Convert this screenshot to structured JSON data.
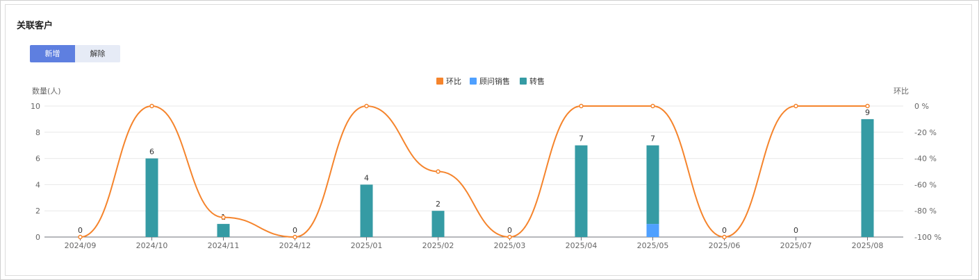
{
  "page": {
    "title": "关联客户"
  },
  "tabs": [
    {
      "label": "新增",
      "active": true
    },
    {
      "label": "解除",
      "active": false
    }
  ],
  "chart_data": {
    "type": "bar",
    "categories": [
      "2024/09",
      "2024/10",
      "2024/11",
      "2024/12",
      "2025/01",
      "2025/02",
      "2025/03",
      "2025/04",
      "2025/05",
      "2025/06",
      "2025/07",
      "2025/08"
    ],
    "series": [
      {
        "name": "顾问销售",
        "kind": "bar",
        "stack": "total",
        "color": "#4fa0ff",
        "values": [
          0,
          0,
          0,
          0,
          0,
          0,
          0,
          0,
          1,
          0,
          0,
          0
        ]
      },
      {
        "name": "转售",
        "kind": "bar",
        "stack": "total",
        "color": "#359ba4",
        "values": [
          0,
          6,
          1,
          0,
          4,
          2,
          0,
          7,
          6,
          0,
          0,
          9
        ]
      },
      {
        "name": "环比",
        "kind": "line",
        "axis": "right",
        "smooth": true,
        "color": "#f5842c",
        "values": [
          -100,
          0,
          -85,
          -100,
          0,
          -50,
          -100,
          0,
          0,
          -100,
          0,
          0
        ]
      }
    ],
    "totals": [
      0,
      6,
      1,
      0,
      4,
      2,
      0,
      7,
      7,
      0,
      0,
      9
    ],
    "legend": [
      "环比",
      "顾问销售",
      "转售"
    ],
    "legend_position": "top-center",
    "ylabel_left": "数量(人)",
    "ylabel_right": "环比",
    "ylim_left": [
      0,
      10
    ],
    "yticks_left": [
      "0",
      "2",
      "4",
      "6",
      "8",
      "10"
    ],
    "ylim_right": [
      -100,
      0
    ],
    "yticks_right": [
      "-100 %",
      "-80 %",
      "-60 %",
      "-40 %",
      "-20 %",
      "0 %"
    ],
    "grid": true
  }
}
